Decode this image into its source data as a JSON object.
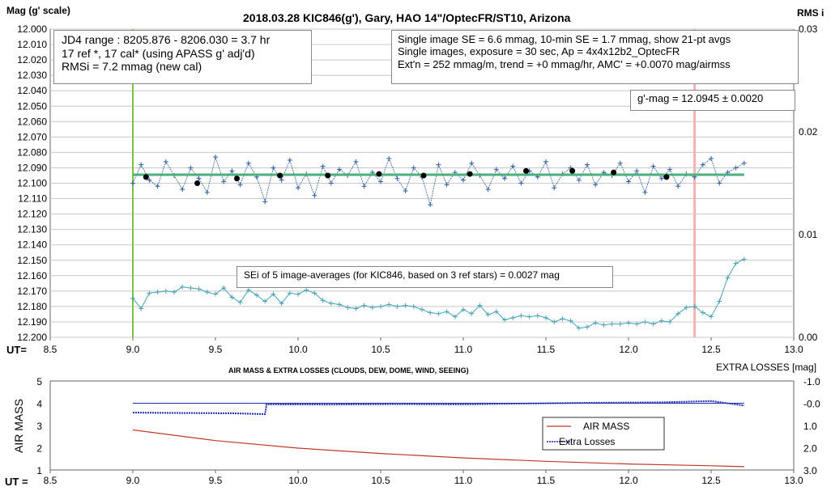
{
  "chart_data": [
    {
      "type": "scatter",
      "title": "2018.03.28  KIC846(g'),  Gary, HAO  14\"/OptecFR/ST10,  Arizona",
      "ylabel": "Mag (g' scale)",
      "y2label": "RMS i",
      "xlabel": "UT=",
      "xlim": [
        8.5,
        13.0
      ],
      "ylim": [
        12.2,
        12.0
      ],
      "y2lim": [
        0.0,
        0.03
      ],
      "xticks": [
        "8.5",
        "9.0",
        "9.5",
        "10.0",
        "10.5",
        "11.0",
        "11.5",
        "12.0",
        "12.5",
        "13.0"
      ],
      "yticks": [
        "12.000",
        "12.010",
        "12.020",
        "12.030",
        "12.040",
        "12.050",
        "12.060",
        "12.070",
        "12.080",
        "12.090",
        "12.100",
        "12.110",
        "12.120",
        "12.130",
        "12.140",
        "12.150",
        "12.160",
        "12.170",
        "12.180",
        "12.190",
        "12.200"
      ],
      "y2ticks": [
        "0.03",
        "0.02",
        "0.01",
        "0.00"
      ],
      "grid": true,
      "fit_mag": 12.0945,
      "start_ut": 9.0,
      "marker_ut": 12.4,
      "series": [
        {
          "description": "individual magnitudes",
          "color": "#2e5fa3",
          "x": [
            9.0,
            9.05,
            9.1,
            9.15,
            9.2,
            9.25,
            9.3,
            9.35,
            9.4,
            9.45,
            9.5,
            9.55,
            9.6,
            9.65,
            9.7,
            9.75,
            9.8,
            9.85,
            9.9,
            9.95,
            10.0,
            10.05,
            10.1,
            10.15,
            10.2,
            10.25,
            10.3,
            10.35,
            10.4,
            10.45,
            10.5,
            10.55,
            10.6,
            10.65,
            10.7,
            10.75,
            10.8,
            10.85,
            10.9,
            10.95,
            11.0,
            11.05,
            11.1,
            11.15,
            11.2,
            11.25,
            11.3,
            11.35,
            11.4,
            11.45,
            11.5,
            11.55,
            11.6,
            11.65,
            11.7,
            11.75,
            11.8,
            11.85,
            11.9,
            11.95,
            12.0,
            12.05,
            12.1,
            12.15,
            12.2,
            12.25,
            12.3,
            12.35,
            12.4,
            12.45,
            12.5,
            12.55,
            12.6,
            12.65,
            12.7
          ],
          "y": [
            12.1,
            12.088,
            12.098,
            12.102,
            12.086,
            12.095,
            12.104,
            12.09,
            12.097,
            12.106,
            12.083,
            12.099,
            12.092,
            12.101,
            12.087,
            12.096,
            12.112,
            12.09,
            12.098,
            12.085,
            12.103,
            12.094,
            12.108,
            12.089,
            12.1,
            12.091,
            12.095,
            12.086,
            12.102,
            12.093,
            12.099,
            12.084,
            12.097,
            12.105,
            12.09,
            12.096,
            12.114,
            12.088,
            12.101,
            12.093,
            12.098,
            12.087,
            12.095,
            12.104,
            12.091,
            12.097,
            12.089,
            12.1,
            12.092,
            12.096,
            12.086,
            12.103,
            12.094,
            12.09,
            12.098,
            12.088,
            12.101,
            12.093,
            12.095,
            12.087,
            12.099,
            12.092,
            12.106,
            12.089,
            12.097,
            12.091,
            12.102,
            12.094,
            12.096,
            12.088,
            12.084,
            12.1,
            12.093,
            12.09,
            12.087
          ]
        },
        {
          "description": "21-pt averages",
          "color": "#000000",
          "x": [
            9.08,
            9.39,
            9.63,
            9.89,
            10.18,
            10.49,
            10.76,
            11.04,
            11.38,
            11.66,
            11.91,
            12.23
          ],
          "y": [
            12.096,
            12.1,
            12.097,
            12.095,
            12.095,
            12.094,
            12.095,
            12.094,
            12.092,
            12.092,
            12.093,
            12.096
          ]
        },
        {
          "description": "SEi",
          "color": "#4aa3b5",
          "axis": "right",
          "x": [
            9.0,
            9.05,
            9.1,
            9.15,
            9.2,
            9.25,
            9.3,
            9.35,
            9.4,
            9.45,
            9.5,
            9.55,
            9.6,
            9.65,
            9.7,
            9.75,
            9.8,
            9.85,
            9.9,
            9.95,
            10.0,
            10.05,
            10.1,
            10.15,
            10.2,
            10.25,
            10.3,
            10.35,
            10.4,
            10.45,
            10.5,
            10.55,
            10.6,
            10.65,
            10.7,
            10.75,
            10.8,
            10.85,
            10.9,
            10.95,
            11.0,
            11.05,
            11.1,
            11.15,
            11.2,
            11.25,
            11.3,
            11.35,
            11.4,
            11.45,
            11.5,
            11.55,
            11.6,
            11.65,
            11.7,
            11.75,
            11.8,
            11.85,
            11.9,
            11.95,
            12.0,
            12.05,
            12.1,
            12.15,
            12.2,
            12.25,
            12.3,
            12.35,
            12.4,
            12.45,
            12.5,
            12.55,
            12.6,
            12.65,
            12.7
          ],
          "y": [
            0.0038,
            0.0028,
            0.0043,
            0.0044,
            0.0045,
            0.0044,
            0.0049,
            0.0048,
            0.0047,
            0.0044,
            0.0042,
            0.0048,
            0.0039,
            0.0034,
            0.0046,
            0.0041,
            0.0035,
            0.0042,
            0.0033,
            0.0043,
            0.0042,
            0.0046,
            0.0043,
            0.0036,
            0.0033,
            0.0032,
            0.0029,
            0.0028,
            0.0031,
            0.0029,
            0.003,
            0.0032,
            0.003,
            0.0031,
            0.003,
            0.0027,
            0.0024,
            0.0023,
            0.0025,
            0.002,
            0.0027,
            0.0023,
            0.0031,
            0.0022,
            0.0025,
            0.0017,
            0.0019,
            0.0021,
            0.002,
            0.0021,
            0.0019,
            0.0015,
            0.0018,
            0.0016,
            0.0009,
            0.001,
            0.0014,
            0.0012,
            0.0013,
            0.0013,
            0.0014,
            0.0013,
            0.0015,
            0.0013,
            0.0016,
            0.0015,
            0.0023,
            0.0029,
            0.003,
            0.0024,
            0.002,
            0.0035,
            0.0058,
            0.0072,
            0.0076
          ]
        }
      ],
      "annotations": {
        "jd": [
          "JD4 range : 8205.876 - 8206.030 = 3.7  hr",
          "17 ref *, 17 cal* (using APASS g' adj'd)",
          "RMSi = 7.2 mmag (new cal)"
        ],
        "info": [
          "Single image SE = 6.6 mmag, 10-min SE = 1.7 mmag, show  21-pt avgs",
          "Single images, exposure = 30 sec, Ap = 4x4x12b2_OptecFR",
          "Ext'n = 252 mmag/m, trend =  +0 mmag/hr, AMC' = +0.0070 mag/airmss"
        ],
        "gmag": "g'-mag = 12.0945 ± 0.0020",
        "sei": "SEi of 5 image-averages (for KIC846, based on 3 ref stars) = 0.0027  mag"
      }
    },
    {
      "type": "line",
      "title": "AIR MASS & EXTRA LOSSES (CLOUDS, DEW, DOME, WIND, SEEING)",
      "ylabel": "AIR MASS",
      "y2label": "EXTRA LOSSES [mag]",
      "xlabel": "UT =",
      "xlim": [
        8.5,
        13.0
      ],
      "ylim": [
        1,
        5
      ],
      "y2lim": [
        3.0,
        -1.0
      ],
      "xticks": [
        "8.5",
        "9.0",
        "9.5",
        "10.0",
        "10.5",
        "11.0",
        "11.5",
        "12.0",
        "12.5",
        "13.0"
      ],
      "yticks": [
        "5",
        "4",
        "3",
        "2",
        "1"
      ],
      "y2ticks": [
        "-1.0",
        "-0.0",
        "1.0",
        "2.0",
        "3.0"
      ],
      "legend": "center-right",
      "series": [
        {
          "name": "AIR MASS",
          "color": "#c0392b",
          "x": [
            9.0,
            9.5,
            10.0,
            10.5,
            11.0,
            11.5,
            12.0,
            12.5,
            12.7
          ],
          "y": [
            2.8,
            2.32,
            1.98,
            1.74,
            1.54,
            1.39,
            1.27,
            1.19,
            1.15
          ]
        },
        {
          "name": "Extra Losses",
          "color": "#1f2db5",
          "axis": "right",
          "x": [
            9.0,
            9.3,
            9.6,
            9.8,
            9.81,
            10.2,
            10.6,
            11.0,
            11.4,
            11.8,
            12.2,
            12.5,
            12.7
          ],
          "y": [
            0.42,
            0.44,
            0.45,
            0.49,
            0.05,
            0.06,
            0.04,
            0.05,
            0.01,
            -0.02,
            -0.04,
            -0.1,
            0.1
          ]
        }
      ],
      "reference_line": {
        "color": "#1f2db5",
        "y2": 0.0
      }
    }
  ]
}
